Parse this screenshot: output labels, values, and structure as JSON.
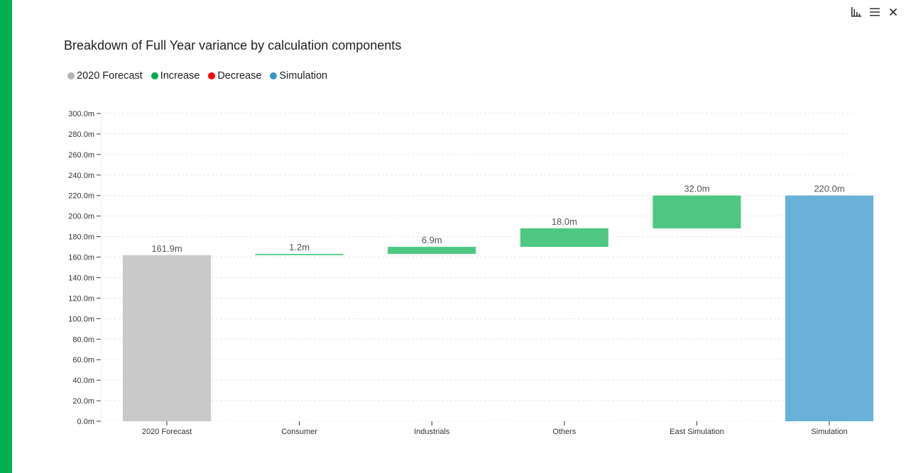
{
  "colors": {
    "accent": "#00b050",
    "forecast": "#c9c9c9",
    "increase": "#4dc781",
    "decrease": "#ff0000",
    "simulation": "#69b1d9",
    "legend_forecast": "#b3b3b3",
    "legend_increase": "#00a650",
    "legend_decrease": "#ff0000",
    "legend_simulation": "#3996c9"
  },
  "toolbar": {
    "chart_type_icon": "bar-chart-icon",
    "menu_icon": "hamburger-menu-icon",
    "close_icon": "close-icon"
  },
  "chart_data": {
    "type": "waterfall",
    "title": "Breakdown of Full Year variance by calculation components",
    "legend": [
      {
        "key": "forecast",
        "label": "2020 Forecast"
      },
      {
        "key": "increase",
        "label": "Increase"
      },
      {
        "key": "decrease",
        "label": "Decrease"
      },
      {
        "key": "simulation",
        "label": "Simulation"
      }
    ],
    "categories": [
      "2020 Forecast",
      "Consumer",
      "Industrials",
      "Others",
      "East Simulation",
      "Simulation"
    ],
    "bars": [
      {
        "category": "2020 Forecast",
        "kind": "forecast",
        "start": 0,
        "end": 161.9,
        "label": "161.9m"
      },
      {
        "category": "Consumer",
        "kind": "increase",
        "start": 161.9,
        "end": 163.1,
        "label": "1.2m"
      },
      {
        "category": "Industrials",
        "kind": "increase",
        "start": 163.1,
        "end": 170.0,
        "label": "6.9m"
      },
      {
        "category": "Others",
        "kind": "increase",
        "start": 170.0,
        "end": 188.0,
        "label": "18.0m"
      },
      {
        "category": "East Simulation",
        "kind": "increase",
        "start": 188.0,
        "end": 220.0,
        "label": "32.0m"
      },
      {
        "category": "Simulation",
        "kind": "simulation",
        "start": 0,
        "end": 220.0,
        "label": "220.0m"
      }
    ],
    "ylim": [
      0,
      300
    ],
    "ytick_step": 20,
    "ytick_suffix": "m",
    "grid": true,
    "legend_position": "top-left"
  }
}
